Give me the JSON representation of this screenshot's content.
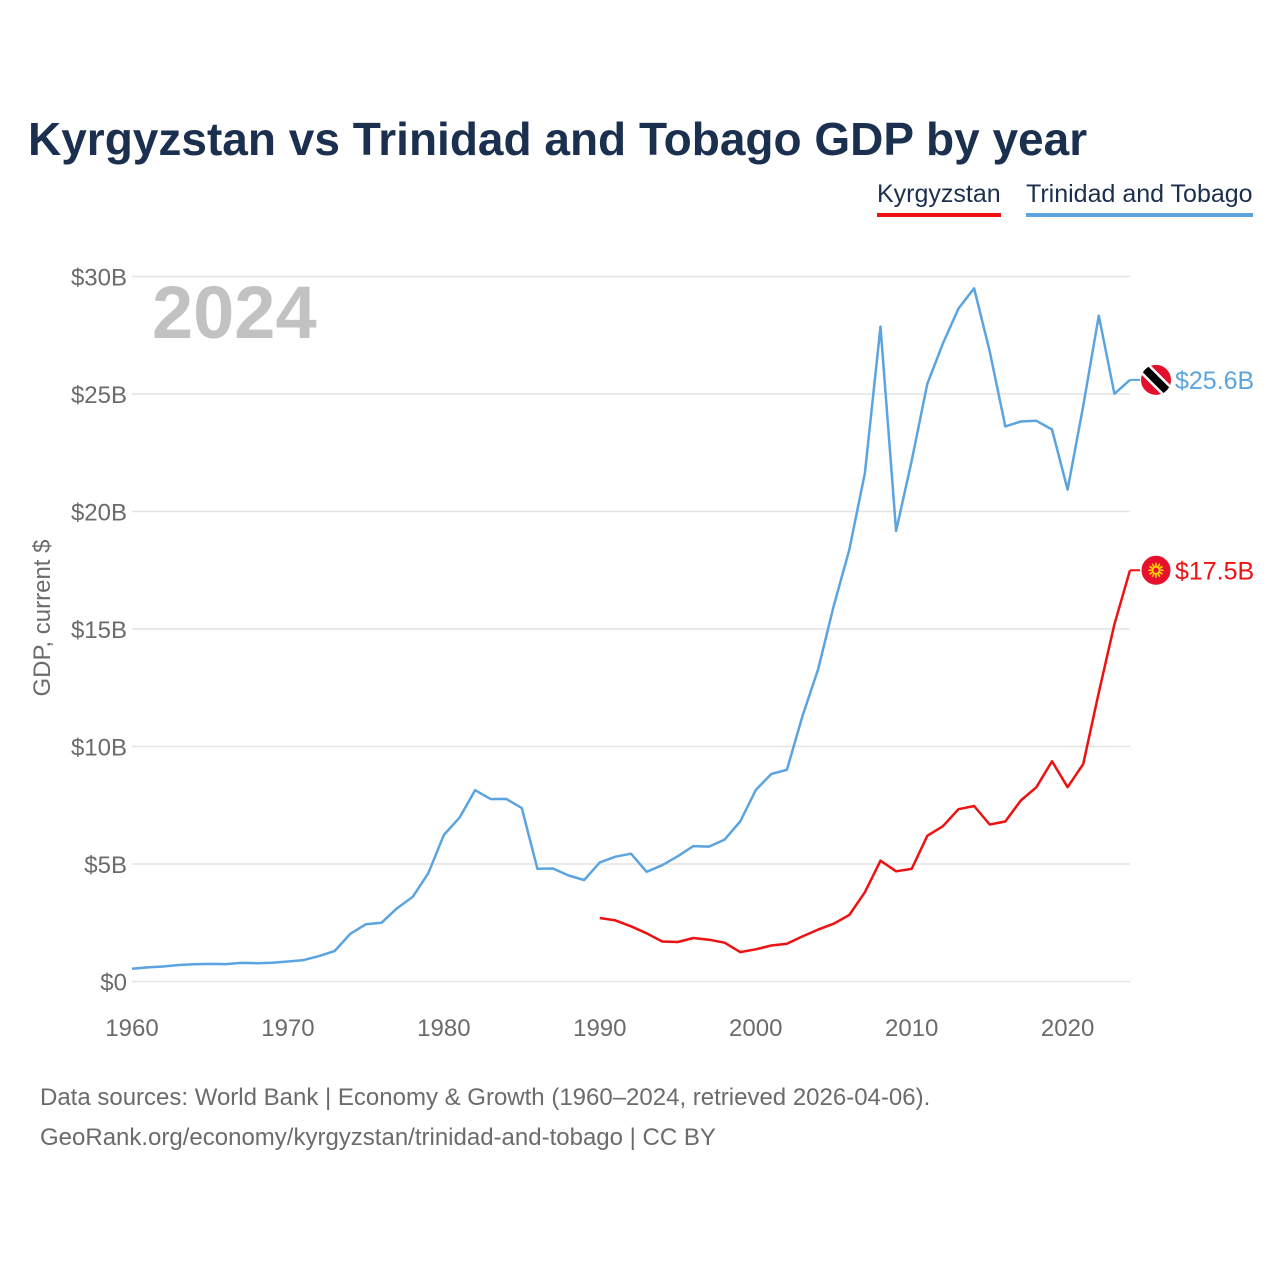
{
  "chart_data": {
    "type": "line",
    "title": "Kyrgyzstan vs Trinidad and Tobago GDP by year",
    "xlabel": "",
    "ylabel": "GDP, current $",
    "year_label": "2024",
    "xlim": [
      1960,
      2024
    ],
    "ylim": [
      0,
      30
    ],
    "x_ticks": [
      1960,
      1970,
      1980,
      1990,
      2000,
      2010,
      2020
    ],
    "y_ticks": [
      0,
      5,
      10,
      15,
      20,
      25,
      30
    ],
    "y_tick_labels": [
      "$0",
      "$5B",
      "$10B",
      "$15B",
      "$20B",
      "$25B",
      "$30B"
    ],
    "grid": true,
    "legend": "top-right",
    "unit": "billion current US$",
    "series": [
      {
        "name": "Kyrgyzstan",
        "color": "#ee1111",
        "flag_icon": "kyrgyzstan-flag-icon",
        "end_label": "$17.5B",
        "x": [
          1990,
          1991,
          1992,
          1993,
          1994,
          1995,
          1996,
          1997,
          1998,
          1999,
          2000,
          2001,
          2002,
          2003,
          2004,
          2005,
          2006,
          2007,
          2008,
          2009,
          2010,
          2011,
          2012,
          2013,
          2014,
          2015,
          2016,
          2017,
          2018,
          2019,
          2020,
          2021,
          2022,
          2023,
          2024
        ],
        "values": [
          2.7,
          2.6,
          2.35,
          2.05,
          1.7,
          1.68,
          1.85,
          1.78,
          1.65,
          1.25,
          1.37,
          1.53,
          1.61,
          1.92,
          2.21,
          2.46,
          2.83,
          3.8,
          5.14,
          4.69,
          4.79,
          6.2,
          6.61,
          7.33,
          7.47,
          6.68,
          6.81,
          7.7,
          8.27,
          9.37,
          8.27,
          9.25,
          12.3,
          15.2,
          17.5
        ]
      },
      {
        "name": "Trinidad and Tobago",
        "color": "#5ba4e0",
        "flag_icon": "trinidad-and-tobago-flag-icon",
        "end_label": "$25.6B",
        "x": [
          1960,
          1961,
          1962,
          1963,
          1964,
          1965,
          1966,
          1967,
          1968,
          1969,
          1970,
          1971,
          1972,
          1973,
          1974,
          1975,
          1976,
          1977,
          1978,
          1979,
          1980,
          1981,
          1982,
          1983,
          1984,
          1985,
          1986,
          1987,
          1988,
          1989,
          1990,
          1991,
          1992,
          1993,
          1994,
          1995,
          1996,
          1997,
          1998,
          1999,
          2000,
          2001,
          2002,
          2003,
          2004,
          2005,
          2006,
          2007,
          2008,
          2009,
          2010,
          2011,
          2012,
          2013,
          2014,
          2015,
          2016,
          2017,
          2018,
          2019,
          2020,
          2021,
          2022,
          2023,
          2024
        ],
        "values": [
          0.54,
          0.6,
          0.64,
          0.7,
          0.73,
          0.75,
          0.74,
          0.79,
          0.78,
          0.8,
          0.85,
          0.91,
          1.08,
          1.3,
          2.03,
          2.44,
          2.5,
          3.12,
          3.6,
          4.61,
          6.24,
          6.97,
          8.14,
          7.76,
          7.77,
          7.38,
          4.8,
          4.81,
          4.51,
          4.32,
          5.07,
          5.31,
          5.44,
          4.67,
          4.95,
          5.33,
          5.76,
          5.74,
          6.04,
          6.81,
          8.15,
          8.83,
          9.01,
          11.3,
          13.28,
          15.98,
          18.37,
          21.64,
          27.87,
          19.17,
          22.16,
          25.43,
          27.15,
          28.64,
          29.5,
          26.82,
          23.62,
          23.83,
          23.86,
          23.49,
          20.93,
          24.49,
          28.33,
          25.01,
          25.6
        ]
      }
    ]
  },
  "source": {
    "line1": "Data sources: World Bank | Economy & Growth (1960–2024, retrieved 2026-04-06).",
    "line2": "GeoRank.org/economy/kyrgyzstan/trinidad-and-tobago | CC BY"
  }
}
